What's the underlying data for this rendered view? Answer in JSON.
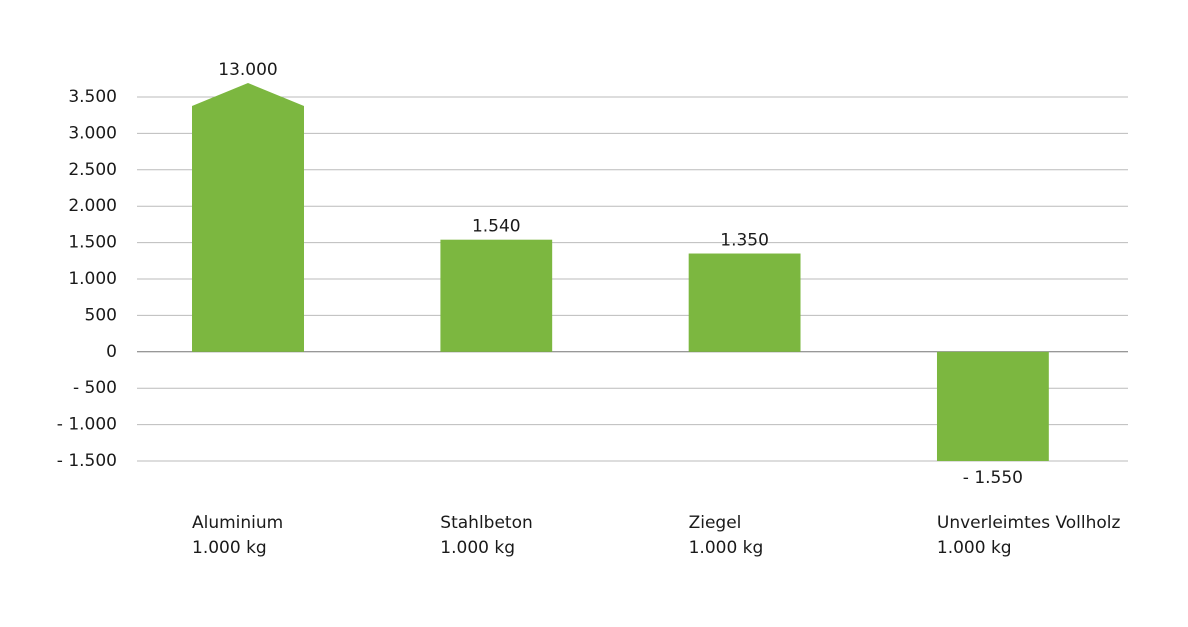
{
  "chart_data": {
    "type": "bar",
    "categories": [
      "Aluminium",
      "Stahlbeton",
      "Ziegel",
      "Unverleimtes Vollholz"
    ],
    "category_units": [
      "1.000 kg",
      "1.000 kg",
      "1.000 kg",
      "1.000 kg"
    ],
    "values": [
      13000,
      1540,
      1350,
      -1550
    ],
    "value_labels": [
      "13.000",
      "1.540",
      "1.350",
      "- 1.550"
    ],
    "color": "#7cb740",
    "ylim": [
      -1500,
      3500
    ],
    "yticks": [
      {
        "value": -1500,
        "label": "- 1.500"
      },
      {
        "value": -1000,
        "label": "- 1.000"
      },
      {
        "value": -500,
        "label": "- 500"
      },
      0,
      500,
      {
        "value": 1000,
        "label": "1.000"
      },
      {
        "value": 1500,
        "label": "1.500"
      },
      {
        "value": 2000,
        "label": "2.000"
      },
      {
        "value": 2500,
        "label": "2.500"
      },
      {
        "value": 3000,
        "label": "3.000"
      },
      {
        "value": 3500,
        "label": "3.500"
      }
    ],
    "grid": true
  }
}
